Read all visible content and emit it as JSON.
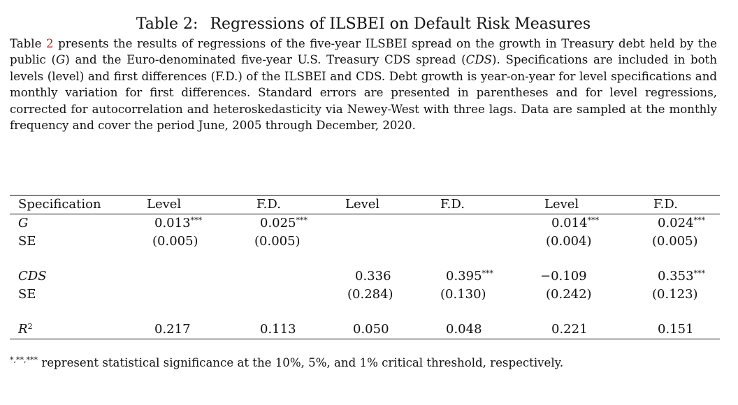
{
  "caption": {
    "label": "Table 2:",
    "title": "Regressions of ILSBEI on Default Risk Measures"
  },
  "description": {
    "ref_pre": "Table ",
    "ref_num": "2",
    "p1": " presents the results of regressions of the five-year ILSBEI spread on the growth in Treasury debt held by the public (",
    "G": "G",
    "p2": ") and the Euro-denominated five-year U.S. Treasury CDS spread (",
    "CDS": "CDS",
    "p3": ").  Specifications are included in both levels (level) and first differences (F.D.) of the ILSBEI and CDS. Debt growth is year-on-year for level specifications and monthly variation for first differences. Standard errors are presented in parentheses and for level regressions, corrected for autocorrelation and heteroskedasticity via Newey-West with three lags.  Data are sampled at the monthly frequency and cover the period June, 2005 through December, 2020."
  },
  "table": {
    "header": [
      "Specification",
      "Level",
      "F.D.",
      "Level",
      "F.D.",
      "Level",
      "F.D."
    ],
    "rows": [
      {
        "label": "G",
        "cells": [
          {
            "v": "0.013",
            "s": "***"
          },
          {
            "v": "0.025",
            "s": "***"
          },
          {
            "v": "",
            "s": ""
          },
          {
            "v": "",
            "s": ""
          },
          {
            "v": "0.014",
            "s": "***"
          },
          {
            "v": "0.024",
            "s": "***"
          }
        ]
      },
      {
        "label": "SE",
        "cells": [
          {
            "v": "(0.005)",
            "s": ""
          },
          {
            "v": "(0.005)",
            "s": ""
          },
          {
            "v": "",
            "s": ""
          },
          {
            "v": "",
            "s": ""
          },
          {
            "v": "(0.004)",
            "s": ""
          },
          {
            "v": "(0.005)",
            "s": ""
          }
        ]
      },
      {
        "label": "CDS",
        "cells": [
          {
            "v": "",
            "s": ""
          },
          {
            "v": "",
            "s": ""
          },
          {
            "v": "0.336",
            "s": ""
          },
          {
            "v": "0.395",
            "s": "***"
          },
          {
            "v": "−0.109",
            "s": ""
          },
          {
            "v": "0.353",
            "s": "***"
          }
        ]
      },
      {
        "label": "SE",
        "cells": [
          {
            "v": "",
            "s": ""
          },
          {
            "v": "",
            "s": ""
          },
          {
            "v": "(0.284)",
            "s": ""
          },
          {
            "v": "(0.130)",
            "s": ""
          },
          {
            "v": "(0.242)",
            "s": ""
          },
          {
            "v": "(0.123)",
            "s": ""
          }
        ]
      },
      {
        "label": "R",
        "sup": "2",
        "cells": [
          {
            "v": "0.217",
            "s": ""
          },
          {
            "v": "0.113",
            "s": ""
          },
          {
            "v": "0.050",
            "s": ""
          },
          {
            "v": "0.048",
            "s": ""
          },
          {
            "v": "0.221",
            "s": ""
          },
          {
            "v": "0.151",
            "s": ""
          }
        ]
      }
    ]
  },
  "note": {
    "stars": "*,**,***",
    "text": " represent statistical significance at the 10%, 5%, and 1% critical threshold, respectively."
  }
}
